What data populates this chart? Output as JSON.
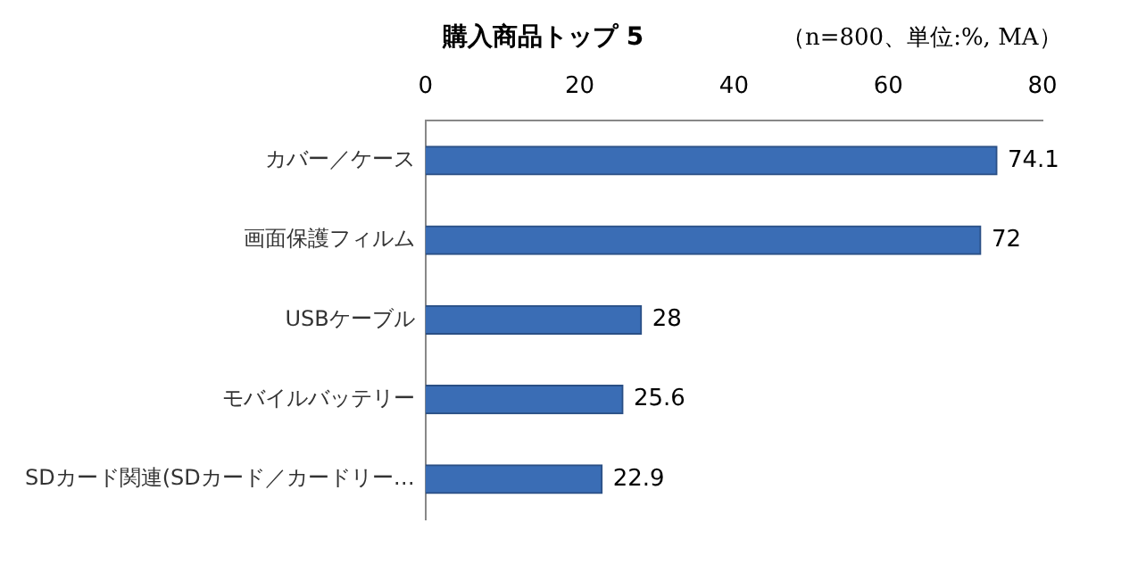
{
  "chart_data": {
    "type": "bar",
    "orientation": "horizontal",
    "title": "購入商品トップ 5",
    "subtitle": "（n=800、単位:%, MA）",
    "categories": [
      "カバー／ケース",
      "画面保護フィルム",
      "USBケーブル",
      "モバイルバッテリー",
      "SDカード関連(SDカード／カードリー…"
    ],
    "values": [
      74.1,
      72,
      28,
      25.6,
      22.9
    ],
    "color": "#3a6db5",
    "xlim": [
      0,
      80
    ],
    "xticks": [
      0,
      20,
      40,
      60,
      80
    ],
    "grid": false,
    "data_labels": true,
    "legend": false
  }
}
